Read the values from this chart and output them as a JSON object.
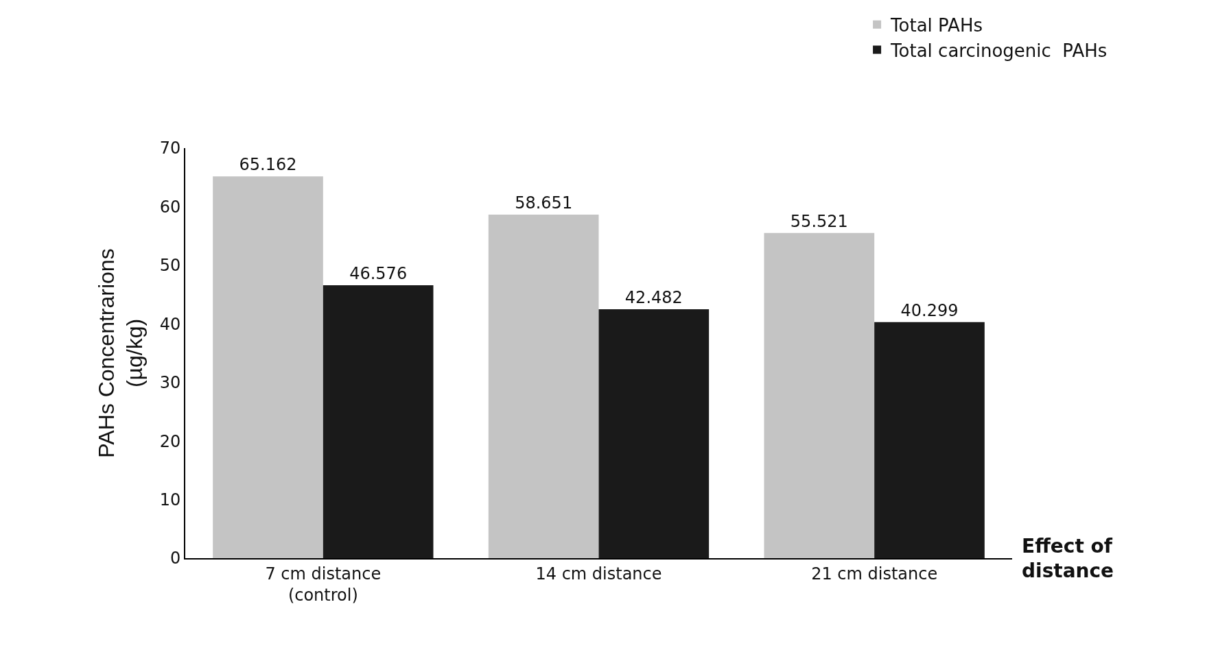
{
  "chart_data": {
    "type": "bar",
    "xlabel": "Effect of\ndistance",
    "ylabel": "PAHs Concentrarions\n(µg/kg)",
    "categories": [
      "7 cm distance\n(control)",
      "14 cm distance",
      "21 cm distance"
    ],
    "series": [
      {
        "name": "Total PAHs",
        "color": "#c4c4c4",
        "values": [
          65.162,
          58.651,
          55.521
        ]
      },
      {
        "name": "Total carcinogenic  PAHs",
        "color": "#1a1a1a",
        "values": [
          46.576,
          42.482,
          40.299
        ]
      }
    ],
    "ylim": [
      0,
      70
    ],
    "yticks": [
      0,
      10,
      20,
      30,
      40,
      50,
      60,
      70
    ],
    "data_labels": true,
    "legend": "top right"
  }
}
